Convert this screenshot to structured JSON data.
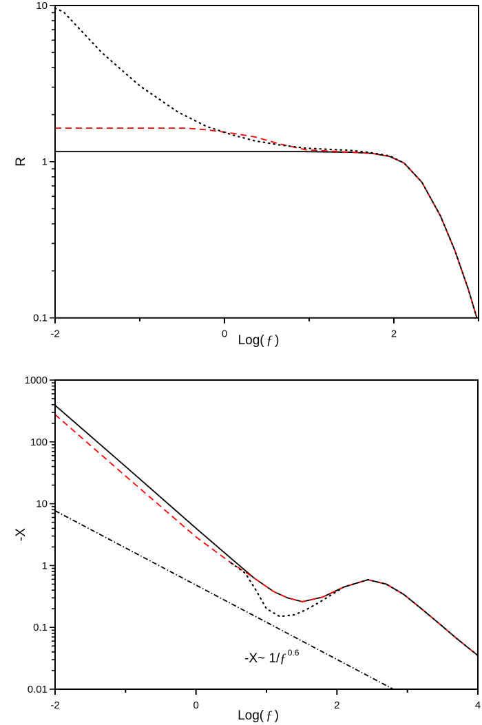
{
  "chart_data": [
    {
      "type": "line",
      "title": "",
      "xlabel": "Log(",
      "xlabel_symbol": "ƒ",
      "xlabel_close": ")",
      "ylabel": "R",
      "xlim": [
        -2,
        3
      ],
      "ylim": [
        0.1,
        10
      ],
      "yscale": "log",
      "grid": false,
      "x_ticks": [
        "-2",
        "0",
        "2"
      ],
      "y_ticks": [
        "0.1",
        "1",
        "10"
      ],
      "series": [
        {
          "style": "solid",
          "color": "#000000",
          "x": [
            -2,
            0.93,
            1.5,
            1.74,
            1.95,
            2.12,
            2.33,
            2.55,
            2.72,
            2.88,
            2.98
          ],
          "y": [
            1.16,
            1.16,
            1.15,
            1.13,
            1.08,
            0.98,
            0.74,
            0.45,
            0.27,
            0.152,
            0.1
          ]
        },
        {
          "style": "dashed",
          "color": "#ff0000",
          "x": [
            -2,
            -0.46,
            -0.21,
            0.1,
            0.36,
            0.65,
            0.97,
            1.5,
            1.74,
            1.95,
            2.12,
            2.33,
            2.55,
            2.72,
            2.88,
            2.98
          ],
          "y": [
            1.64,
            1.64,
            1.6,
            1.52,
            1.44,
            1.3,
            1.19,
            1.15,
            1.13,
            1.08,
            0.98,
            0.74,
            0.45,
            0.27,
            0.152,
            0.1
          ]
        },
        {
          "style": "dotted",
          "color": "#000000",
          "x": [
            -2,
            -1.9,
            -1.45,
            -1,
            -0.55,
            -0.21,
            0.1,
            0.36,
            0.65,
            0.97,
            1.5,
            1.74,
            1.95,
            2.12,
            2.33,
            2.55,
            2.72,
            2.88,
            2.98
          ],
          "y": [
            9.6,
            9.1,
            5.0,
            3.06,
            2.08,
            1.68,
            1.48,
            1.36,
            1.28,
            1.22,
            1.18,
            1.14,
            1.09,
            0.98,
            0.74,
            0.45,
            0.27,
            0.152,
            0.1
          ]
        }
      ]
    },
    {
      "type": "line",
      "title": "",
      "xlabel": "Log(",
      "xlabel_symbol": "ƒ",
      "xlabel_close": ")",
      "ylabel": "-X",
      "xlim": [
        -2,
        4
      ],
      "ylim": [
        0.01,
        1000
      ],
      "yscale": "log",
      "grid": false,
      "x_ticks": [
        "-2",
        "0",
        "2",
        "4"
      ],
      "y_ticks": [
        "0.01",
        "0.1",
        "1",
        "10",
        "100",
        "1000"
      ],
      "annotation": {
        "prefix": "-X~ 1/",
        "symbol": "ƒ",
        "exponent": "0.6"
      },
      "series": [
        {
          "style": "solid",
          "color": "#000000",
          "x": [
            -2,
            -1,
            0,
            0.5,
            0.83,
            1.1,
            1.3,
            1.51,
            1.8,
            2.1,
            2.44,
            2.7,
            2.95,
            3.2,
            3.44,
            3.7,
            4
          ],
          "y": [
            390,
            40,
            4.0,
            1.3,
            0.62,
            0.38,
            0.3,
            0.26,
            0.31,
            0.45,
            0.59,
            0.5,
            0.34,
            0.2,
            0.118,
            0.066,
            0.035
          ]
        },
        {
          "style": "dashed",
          "color": "#ff0000",
          "x": [
            -2,
            -1,
            0,
            0.5,
            0.75,
            0.83,
            1.1,
            1.3,
            1.51,
            1.8,
            2.1,
            2.44,
            2.7,
            2.95,
            3.2,
            3.44,
            3.7,
            4
          ],
          "y": [
            277,
            28,
            2.9,
            1.1,
            0.72,
            0.62,
            0.38,
            0.3,
            0.26,
            0.31,
            0.45,
            0.59,
            0.5,
            0.34,
            0.2,
            0.118,
            0.066,
            0.035
          ]
        },
        {
          "style": "dotted",
          "color": "#000000",
          "x": [
            0.5,
            0.7,
            0.85,
            1.0,
            1.19,
            1.4,
            1.55,
            1.74,
            1.91,
            2.1,
            2.44,
            2.7,
            2.95,
            3.2,
            3.44,
            3.7,
            4
          ],
          "y": [
            1.1,
            0.75,
            0.4,
            0.2,
            0.15,
            0.16,
            0.19,
            0.25,
            0.33,
            0.45,
            0.59,
            0.5,
            0.34,
            0.2,
            0.118,
            0.066,
            0.035
          ]
        },
        {
          "style": "dashdot",
          "color": "#000000",
          "x": [
            -2,
            2.8
          ],
          "y": [
            7.7,
            0.01
          ]
        }
      ]
    }
  ]
}
